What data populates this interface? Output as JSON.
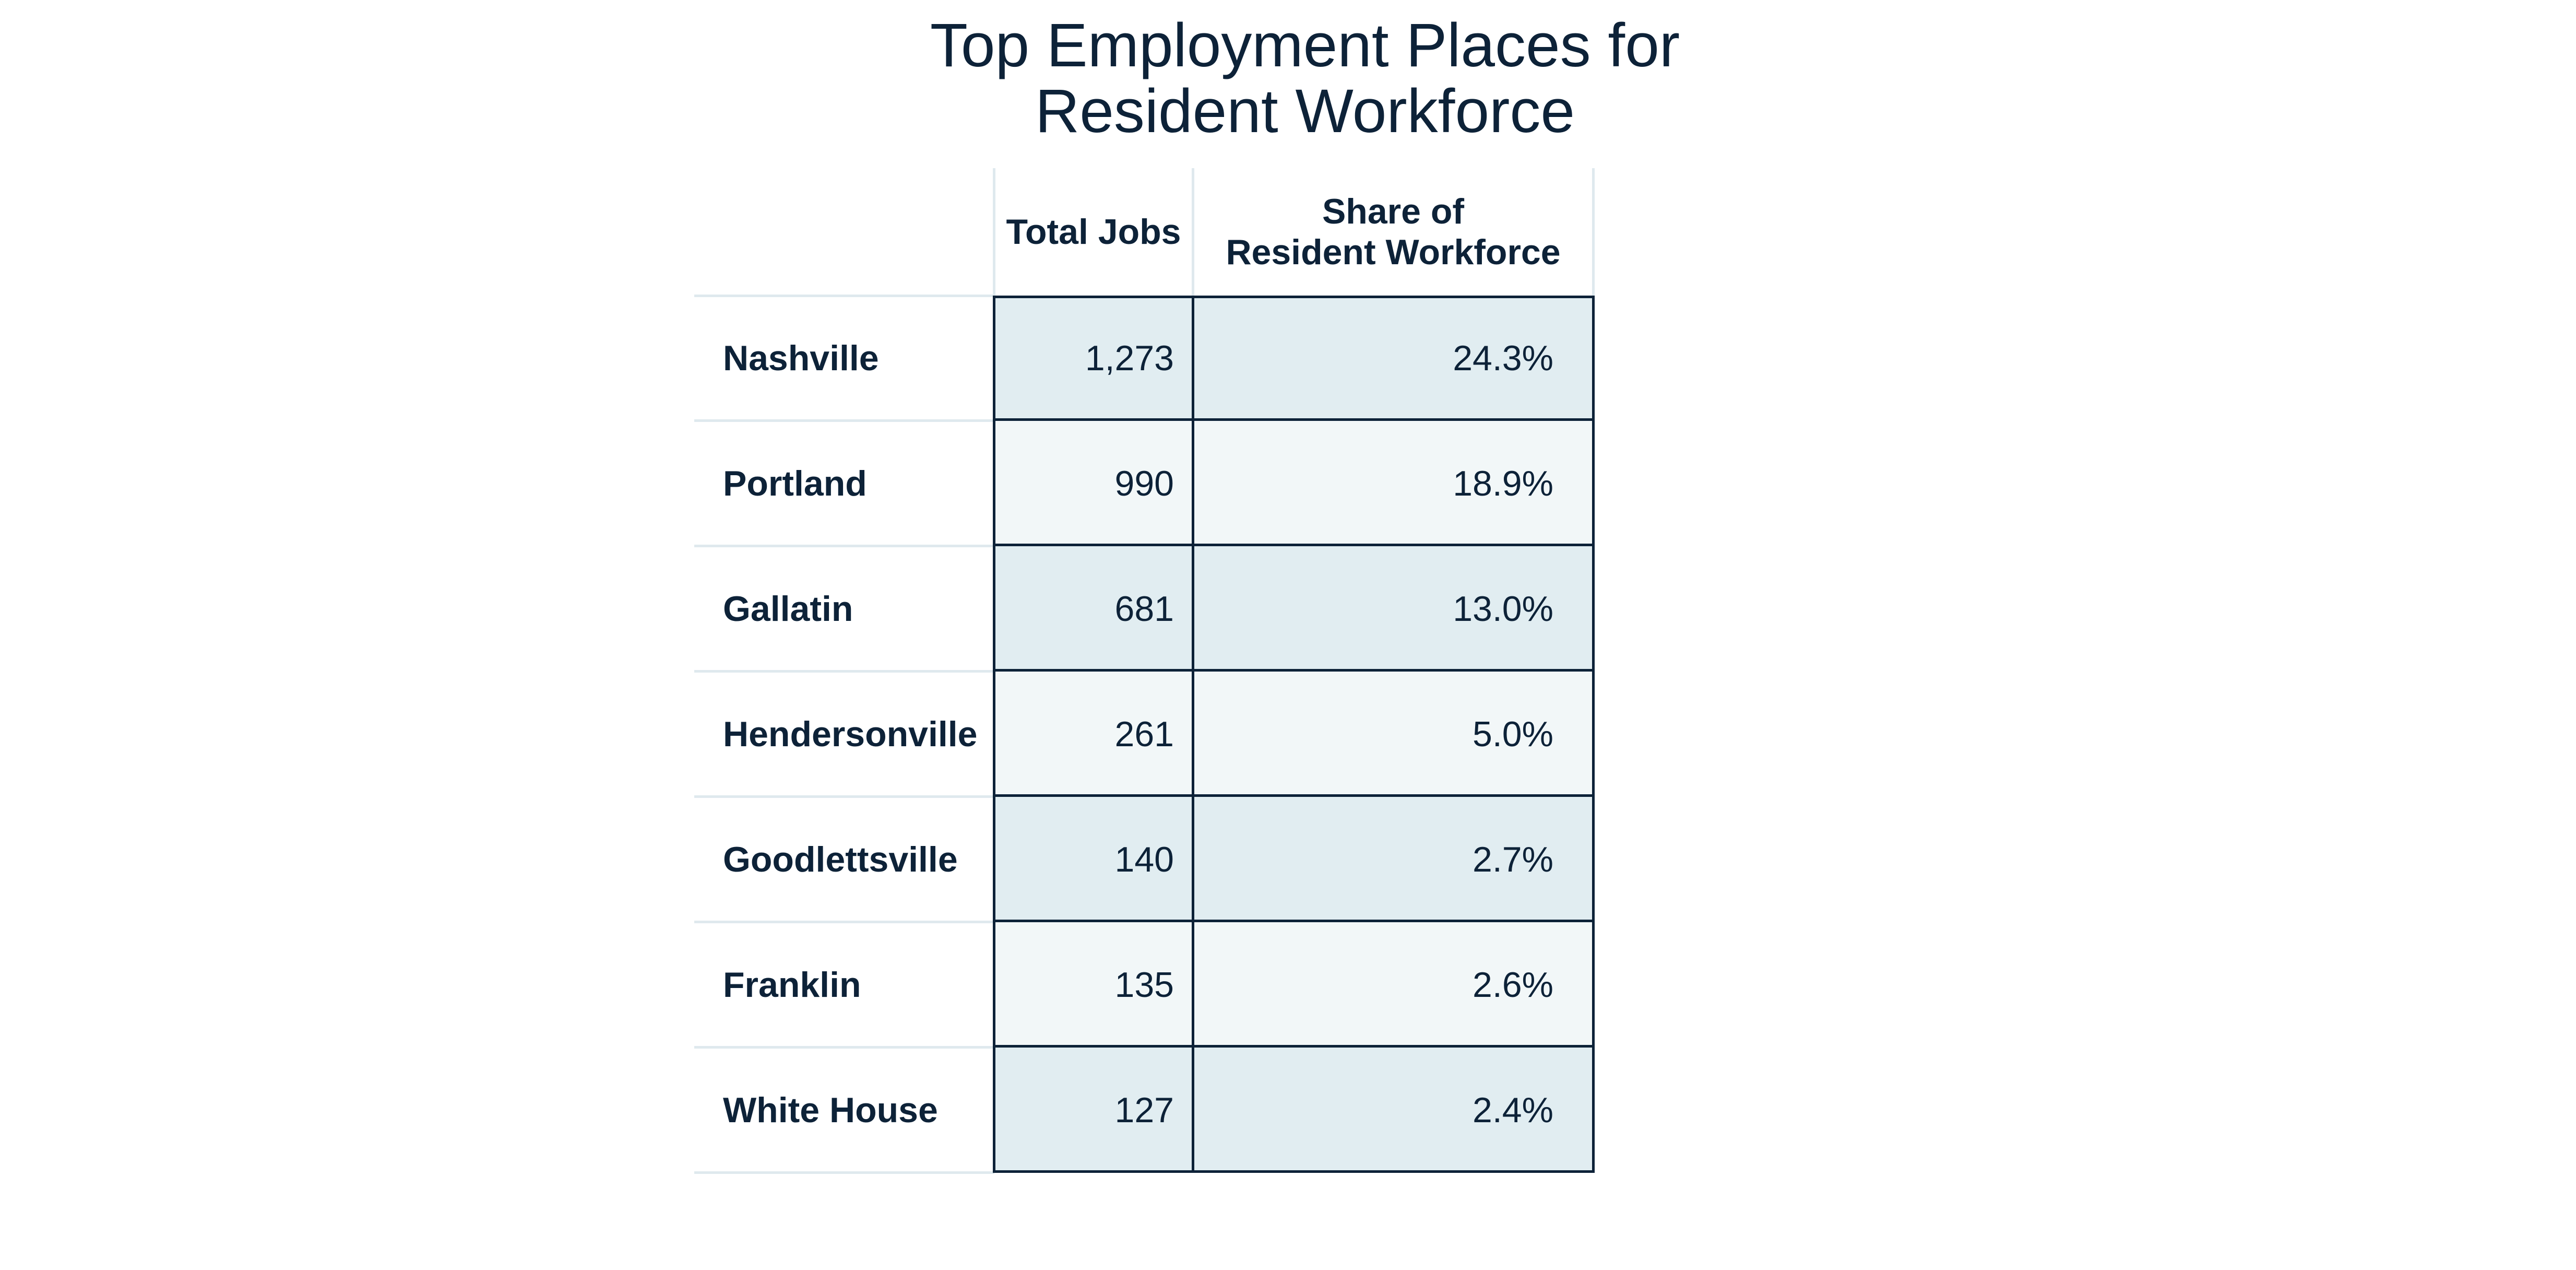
{
  "chart_data": {
    "type": "table",
    "title_lines": [
      "Top Employment Places for",
      "Resident Workforce"
    ],
    "columns": [
      {
        "lines": [
          "Total Jobs"
        ]
      },
      {
        "lines": [
          "Share of",
          "Resident Workforce"
        ]
      }
    ],
    "rows": [
      {
        "place": "Nashville",
        "total_jobs": "1,273",
        "share": "24.3%"
      },
      {
        "place": "Portland",
        "total_jobs": "990",
        "share": "18.9%"
      },
      {
        "place": "Gallatin",
        "total_jobs": "681",
        "share": "13.0%"
      },
      {
        "place": "Hendersonville",
        "total_jobs": "261",
        "share": "5.0%"
      },
      {
        "place": "Goodlettsville",
        "total_jobs": "140",
        "share": "2.7%"
      },
      {
        "place": "Franklin",
        "total_jobs": "135",
        "share": "2.6%"
      },
      {
        "place": "White House",
        "total_jobs": "127",
        "share": "2.4%"
      }
    ],
    "row_fill_colors": [
      "#e1edf1",
      "#f2f7f8"
    ],
    "text_color": "#0d2238",
    "border_color": "#0d2238",
    "divider_color": "#dfe9ee"
  }
}
